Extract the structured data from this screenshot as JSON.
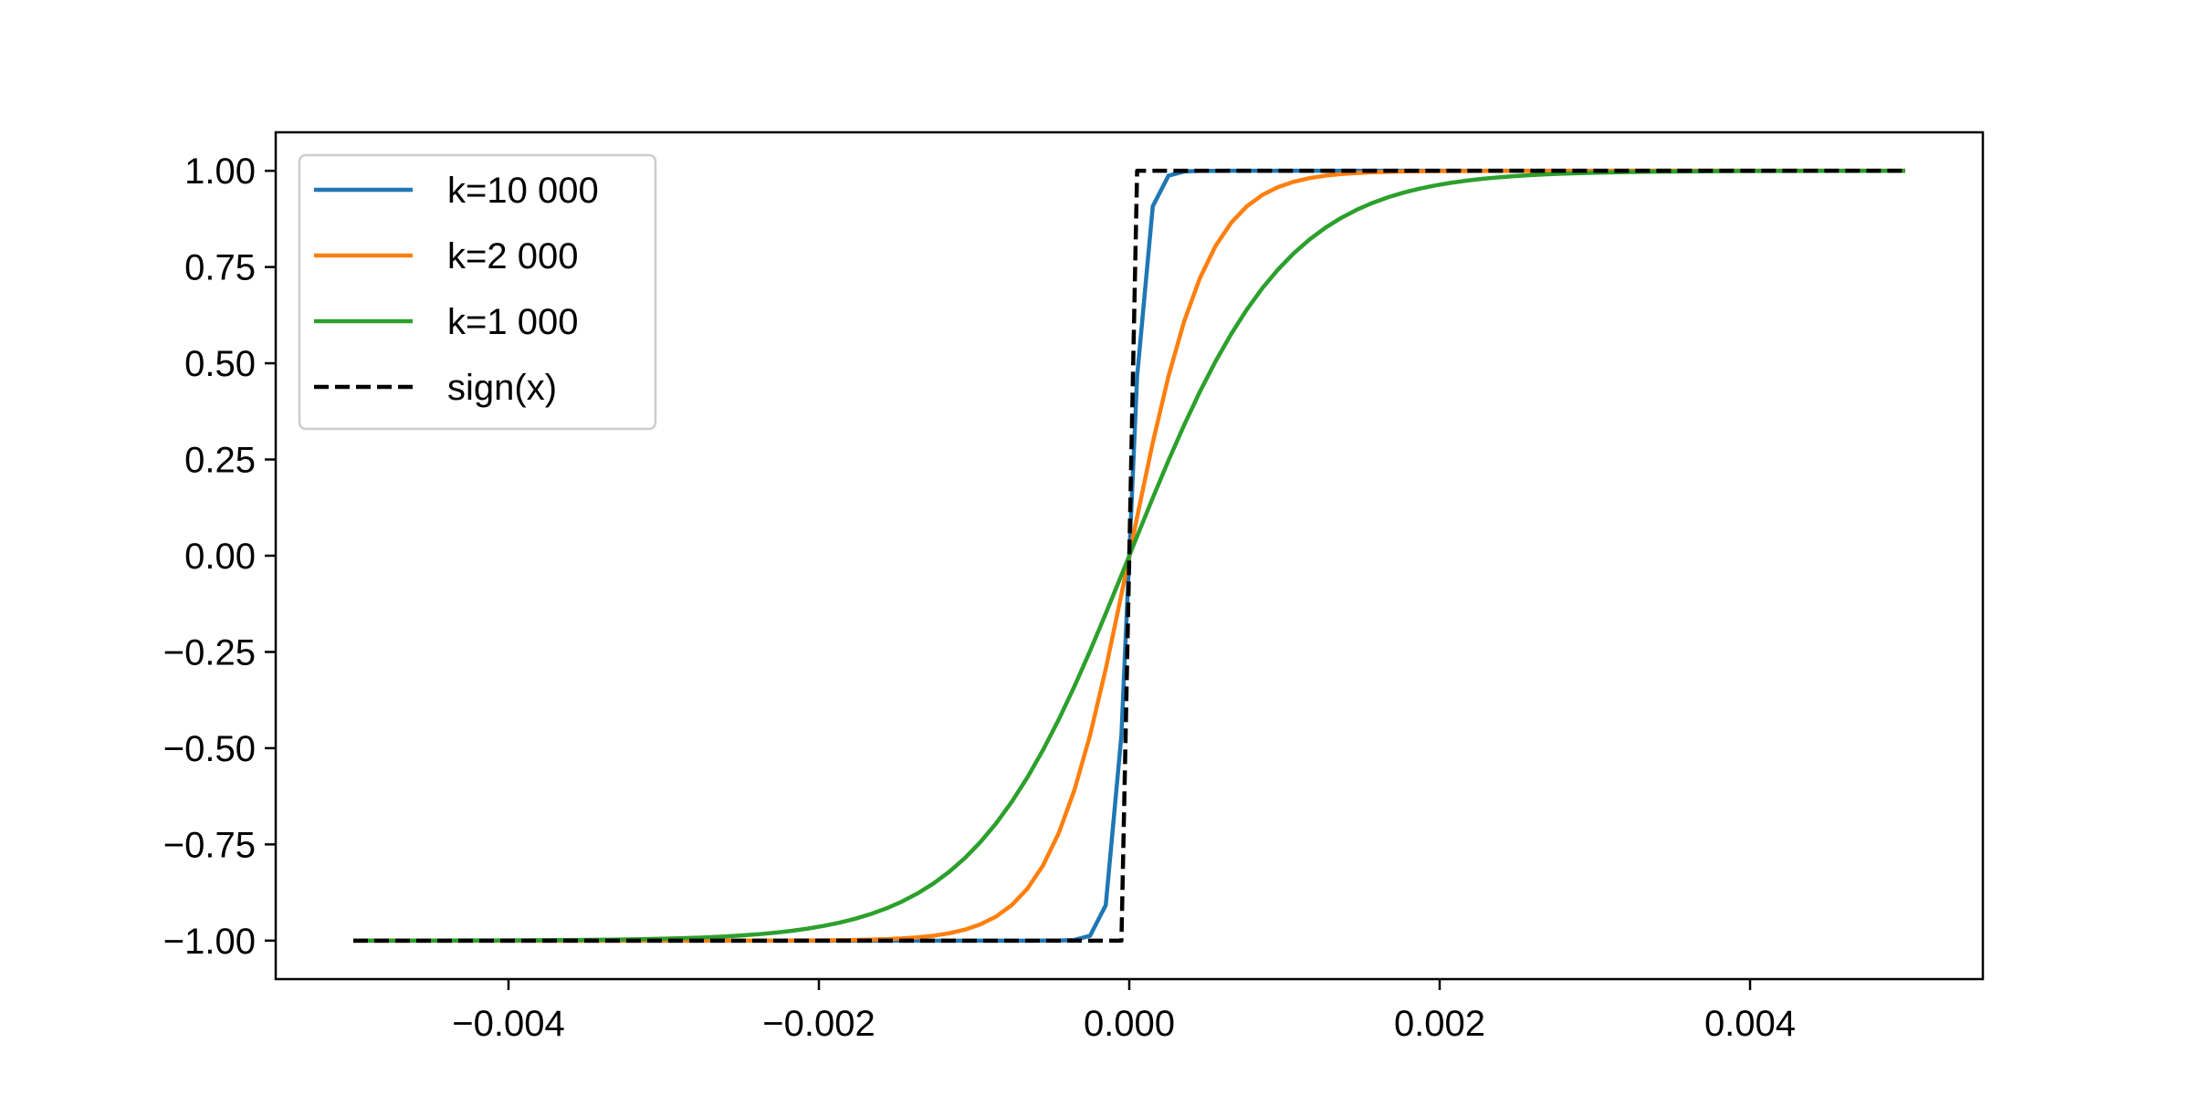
{
  "chart_data": {
    "type": "line",
    "title": "",
    "xlabel": "",
    "ylabel": "",
    "xlim": [
      -0.0055,
      0.0055
    ],
    "ylim": [
      -1.1,
      1.1
    ],
    "x_range": [
      -0.005,
      0.005
    ],
    "samples": 100,
    "grid": false,
    "legend_position": "top-left",
    "x_ticks": [
      -0.004,
      -0.002,
      0.0,
      0.002,
      0.004
    ],
    "x_tick_labels": [
      "−0.004",
      "−0.002",
      "0.000",
      "0.002",
      "0.004"
    ],
    "y_ticks": [
      1.0,
      0.75,
      0.5,
      0.25,
      0.0,
      -0.25,
      -0.5,
      -0.75,
      -1.0
    ],
    "y_tick_labels": [
      "1.00",
      "0.75",
      "0.50",
      "0.25",
      "0.00",
      "−0.25",
      "−0.50",
      "−0.75",
      "−1.00"
    ],
    "series": [
      {
        "name": "k=10 000",
        "function": "tanh",
        "k": 10000,
        "color": "#1f77b4",
        "style": "solid"
      },
      {
        "name": "k=2 000",
        "function": "tanh",
        "k": 2000,
        "color": "#ff7f0e",
        "style": "solid"
      },
      {
        "name": "k=1 000",
        "function": "tanh",
        "k": 1000,
        "color": "#2ca02c",
        "style": "solid"
      },
      {
        "name": "sign(x)",
        "function": "sign",
        "color": "#000000",
        "style": "dashed"
      }
    ]
  }
}
